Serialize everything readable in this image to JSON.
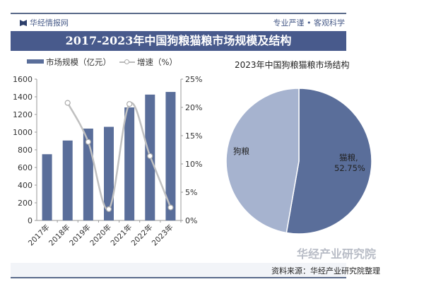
{
  "header": {
    "brand": "华经情报网",
    "slogan": "专业严谨 • 客观科学",
    "title": "2017-2023年中国狗粮猫粮市场规模及结构"
  },
  "footer": {
    "source": "资料来源：华经产业研究院整理",
    "watermark": "华经产业研究院"
  },
  "chart_data": [
    {
      "type": "bar",
      "title": "",
      "categories": [
        "2017年",
        "2018年",
        "2019年",
        "2020年",
        "2021年",
        "2022年",
        "2023年"
      ],
      "series": [
        {
          "name": "市场规模（亿元）",
          "values": [
            750,
            905,
            1040,
            1060,
            1280,
            1425,
            1455
          ],
          "color": "#5a6e9a",
          "axis": "left"
        },
        {
          "name": "增速（%）",
          "type": "line",
          "values": [
            null,
            20.8,
            13.9,
            2.0,
            20.6,
            11.4,
            2.3
          ],
          "color": "#c0c0c0",
          "axis": "right"
        }
      ],
      "ylim": [
        0,
        1600
      ],
      "yticks": [
        "0",
        "200",
        "400",
        "600",
        "800",
        "1000",
        "1200",
        "1400",
        "1600"
      ],
      "y2lim": [
        0,
        25
      ],
      "y2ticks": [
        "0%",
        "5%",
        "10%",
        "15%",
        "20%",
        "25%"
      ],
      "legend": "top"
    },
    {
      "type": "pie",
      "title": "2023年中国狗粮猫粮市场结构",
      "slices": [
        {
          "label": "猫粮",
          "value": 52.75,
          "display": "52.75%",
          "color": "#5a6e9a"
        },
        {
          "label": "狗粮",
          "value": 47.25,
          "color": "#a6b3cf"
        }
      ]
    }
  ]
}
